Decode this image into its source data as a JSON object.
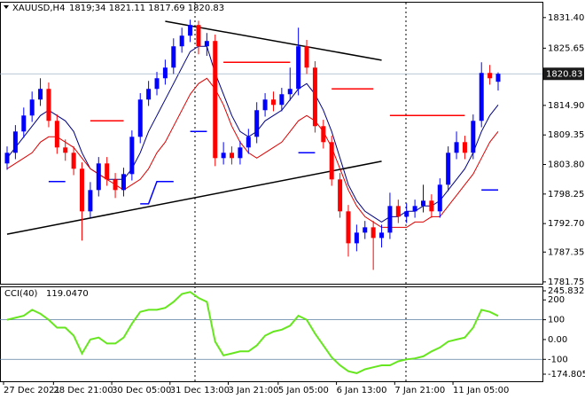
{
  "chart_data": {
    "type": "candlestick",
    "title": "XAUUSD,H4",
    "ohlc_label": "1819;34 1821.11 1817.69 1820.83",
    "categories": [
      "27 Dec 2021",
      null,
      null,
      null,
      null,
      null,
      "28 Dec 21:00",
      null,
      null,
      null,
      null,
      null,
      null,
      "30 Dec 05:00",
      null,
      null,
      null,
      null,
      null,
      null,
      "31 Dec 13:00",
      null,
      null,
      null,
      null,
      null,
      null,
      "3 Jan 21:00",
      null,
      null,
      null,
      null,
      null,
      "5 Jan 05:00",
      null,
      null,
      null,
      null,
      null,
      null,
      "6 Jan 13:00",
      null,
      null,
      null,
      null,
      null,
      null,
      "7 Jan 21:00",
      null,
      null,
      null,
      null,
      null,
      null,
      "11 Jan 05:00",
      null,
      null,
      null,
      null,
      null
    ],
    "open": [
      1804,
      1806,
      1810,
      1813,
      1816,
      1818,
      1812,
      1807,
      1806,
      1803,
      1795,
      1799,
      1804,
      1801,
      1799,
      1802,
      1809,
      1816,
      1818,
      1820,
      1822,
      1826,
      1828,
      1830,
      1826,
      1827,
      1805,
      1806,
      1805,
      1807,
      1809,
      1814,
      1816,
      1815,
      1817,
      1818,
      1826,
      1822,
      1811,
      1808,
      1801,
      1795,
      1789,
      1791,
      1792,
      1790,
      1791,
      1796,
      1794,
      1795,
      1796,
      1797,
      1795,
      1800,
      1806,
      1808,
      1806,
      1812,
      1821,
      1819.34
    ],
    "high": [
      1807.2,
      1811.2,
      1814.5,
      1817.5,
      1820,
      1819.2,
      1813.2,
      1808.5,
      1807.2,
      1804.2,
      1800.5,
      1805.2,
      1805.2,
      1802.2,
      1803.2,
      1810.2,
      1817.2,
      1819.5,
      1821.2,
      1823.5,
      1827.5,
      1829.5,
      1831,
      1830.8,
      1828.5,
      1828.2,
      1808,
      1807.2,
      1808.2,
      1810.5,
      1815.5,
      1817.2,
      1817.5,
      1818.2,
      1822,
      1829.5,
      1827.2,
      1823.2,
      1812.2,
      1809.2,
      1802.2,
      1796.2,
      1792.5,
      1793.2,
      1793.2,
      1792.5,
      1798.5,
      1797.2,
      1796.5,
      1797.2,
      1800,
      1798.2,
      1801.2,
      1807.2,
      1810,
      1809.2,
      1813.2,
      1823,
      1822.5,
      1821.11
    ],
    "low": [
      1802.8,
      1804.8,
      1808.8,
      1811.8,
      1814.8,
      1810.8,
      1805.8,
      1804.5,
      1801.8,
      1789.5,
      1793.8,
      1797.8,
      1799.8,
      1797.5,
      1797.8,
      1800.8,
      1807.8,
      1814.8,
      1816.8,
      1818.8,
      1820.8,
      1824.8,
      1826.8,
      1824.5,
      1824.2,
      1803.5,
      1803.8,
      1803.8,
      1803.8,
      1805.8,
      1807.8,
      1812.8,
      1813.8,
      1813.8,
      1815.8,
      1816.8,
      1820.8,
      1809.8,
      1806.8,
      1799.8,
      1793.8,
      1786.5,
      1787.5,
      1789.8,
      1784,
      1788.2,
      1789.8,
      1792.8,
      1792.8,
      1793.8,
      1794.8,
      1793.8,
      1793.8,
      1798.8,
      1804.8,
      1804.8,
      1804.8,
      1810.8,
      1818.8,
      1817.69
    ],
    "close": [
      1806,
      1810,
      1813,
      1816,
      1818,
      1812,
      1807,
      1806,
      1803,
      1795,
      1799,
      1804,
      1801,
      1799,
      1802,
      1809,
      1816,
      1818,
      1820,
      1822,
      1826,
      1828,
      1830,
      1826,
      1827,
      1805,
      1806,
      1805,
      1807,
      1809,
      1814,
      1816,
      1815,
      1817,
      1818,
      1826,
      1822,
      1811,
      1808,
      1801,
      1795,
      1789,
      1791,
      1792,
      1790,
      1791,
      1796,
      1794,
      1795,
      1796,
      1797,
      1795,
      1800,
      1806,
      1808,
      1806,
      1812,
      1821,
      1820,
      1820.83
    ],
    "up_color": "#0000ff",
    "down_color": "#ff0000",
    "lines": [
      {
        "color": "#000080",
        "values": [
          1805,
          1807,
          1809,
          1811,
          1813,
          1814,
          1813,
          1812,
          1810,
          1806,
          1803,
          1802,
          1801,
          1801,
          1801,
          1803,
          1806,
          1810,
          1813,
          1816,
          1819,
          1822,
          1825,
          1826,
          1826,
          1821,
          1817,
          1813,
          1810,
          1809,
          1810,
          1812,
          1813,
          1814,
          1816,
          1818,
          1819,
          1817,
          1814,
          1810,
          1805,
          1800,
          1797,
          1795,
          1794,
          1793,
          1794,
          1794,
          1795,
          1795,
          1796,
          1796,
          1797,
          1799,
          1801,
          1803,
          1806,
          1810,
          1813,
          1815
        ]
      },
      {
        "color": "#dd0000",
        "values": [
          1803,
          1804,
          1805,
          1806,
          1808,
          1809,
          1809,
          1808,
          1807,
          1805,
          1803,
          1802,
          1801,
          1800,
          1799,
          1800,
          1801,
          1803,
          1806,
          1808,
          1811,
          1814,
          1817,
          1819,
          1820,
          1818,
          1815,
          1811,
          1808,
          1806,
          1805,
          1806,
          1807,
          1808,
          1810,
          1812,
          1813,
          1812,
          1810,
          1807,
          1803,
          1799,
          1796,
          1794,
          1793,
          1792,
          1792,
          1792,
          1792,
          1793,
          1793,
          1794,
          1794,
          1796,
          1798,
          1800,
          1802,
          1805,
          1808,
          1810
        ]
      },
      {
        "color": "#ff0000",
        "values": [
          null,
          null,
          null,
          null,
          null,
          null,
          null,
          null,
          null,
          null,
          1812,
          1812,
          1812,
          1812,
          1812,
          null,
          null,
          null,
          null,
          null,
          null,
          null,
          null,
          null,
          null,
          null,
          1823,
          1823,
          1823,
          1823,
          1823,
          1823,
          1823,
          1823,
          1823,
          null,
          null,
          null,
          null,
          1818,
          1818,
          1818,
          1818,
          1818,
          1818,
          null,
          1813,
          1813,
          1813,
          1813,
          1813,
          1813,
          1813,
          1813,
          1813,
          1813,
          null,
          null,
          null,
          null
        ]
      },
      {
        "color": "#0000ff",
        "values": [
          null,
          null,
          null,
          null,
          null,
          1800.6,
          1800.6,
          1800.6,
          null,
          null,
          null,
          null,
          null,
          null,
          null,
          null,
          1796.4,
          1796.4,
          1800.6,
          1800.6,
          1800.6,
          null,
          1810,
          1810,
          1810,
          null,
          null,
          null,
          null,
          null,
          null,
          null,
          null,
          null,
          null,
          1806,
          1806,
          1806,
          null,
          null,
          null,
          null,
          null,
          null,
          null,
          null,
          null,
          null,
          null,
          null,
          null,
          null,
          null,
          null,
          null,
          null,
          null,
          1799,
          1799,
          1799
        ]
      }
    ],
    "trendlines": [
      {
        "color": "#000000",
        "start": [
          19,
          1830.7
        ],
        "end": [
          45,
          1823.4
        ]
      },
      {
        "color": "#000000",
        "start": [
          0,
          1790.7
        ],
        "end": [
          45,
          1804.4
        ]
      }
    ],
    "ylim": [
      1781.4,
      1834.2
    ],
    "yticks": [
      {
        "value": 1831.4,
        "label": "1831.40"
      },
      1825.65,
      {
        "value": 1814.9,
        "label": "1814.90"
      },
      1809.35,
      {
        "value": 1803.8,
        "label": "1803.80"
      },
      1798.25,
      {
        "value": 1792.7,
        "label": "1792.70"
      },
      1787.35,
      1781.75
    ],
    "cci": {
      "title": "CCI(40)",
      "value": 119.047,
      "value_label": "119.0470",
      "color": "#66e61e",
      "values": [
        100,
        110,
        120,
        150,
        130,
        100,
        60,
        60,
        20,
        -70,
        0,
        10,
        -20,
        -20,
        10,
        80,
        140,
        150,
        150,
        160,
        190,
        230,
        240,
        210,
        190,
        -10,
        -80,
        -70,
        -60,
        -60,
        -30,
        20,
        40,
        50,
        70,
        120,
        100,
        30,
        -30,
        -90,
        -130,
        -160,
        -170,
        -150,
        -140,
        -130,
        -130,
        -110,
        -100,
        -95,
        -85,
        -60,
        -40,
        -10,
        0,
        10,
        60,
        150,
        140,
        119.047
      ],
      "ylim": [
        -174.8056,
        245.8329
      ],
      "yticks": [
        245.8329,
        200,
        100,
        {
          "value": 0,
          "label": "0.00"
        },
        -100,
        -174.8056
      ],
      "levels": [
        100,
        -100
      ]
    }
  }
}
